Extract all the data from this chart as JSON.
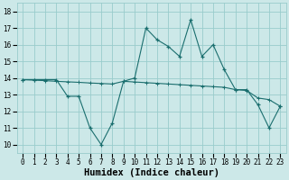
{
  "xlabel": "Humidex (Indice chaleur)",
  "ylabel": "",
  "xlim": [
    -0.5,
    23.5
  ],
  "ylim": [
    9.5,
    18.5
  ],
  "yticks": [
    10,
    11,
    12,
    13,
    14,
    15,
    16,
    17,
    18
  ],
  "xtick_labels": [
    "0",
    "1",
    "2",
    "3",
    "4",
    "5",
    "6",
    "7",
    "8",
    "9",
    "10",
    "11",
    "12",
    "13",
    "14",
    "15",
    "16",
    "17",
    "18",
    "19",
    "20",
    "21",
    "22",
    "23"
  ],
  "bg_color": "#cce8e8",
  "grid_color": "#99cccc",
  "line_color": "#1a6e6e",
  "main_y": [
    13.9,
    13.9,
    13.9,
    13.9,
    12.9,
    12.9,
    11.0,
    10.0,
    11.3,
    13.8,
    14.0,
    17.0,
    16.3,
    15.9,
    15.3,
    17.5,
    15.3,
    16.0,
    14.5,
    13.3,
    13.3,
    12.4,
    11.0,
    12.3
  ],
  "trend_y": [
    13.9,
    13.87,
    13.84,
    13.8,
    13.77,
    13.74,
    13.7,
    13.67,
    13.64,
    13.8,
    13.76,
    13.72,
    13.68,
    13.64,
    13.6,
    13.56,
    13.52,
    13.48,
    13.44,
    13.3,
    13.25,
    12.8,
    12.7,
    12.3
  ],
  "label_fontsize": 5.5,
  "xlabel_fontsize": 7.5
}
